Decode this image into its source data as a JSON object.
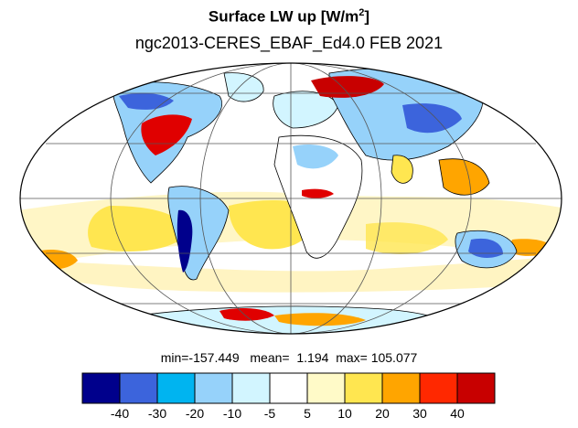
{
  "title": "Surface LW up [W/m",
  "title_sup": "2",
  "title_end": "]",
  "subtitle": "ngc2013-CERES_EBAF_Ed4.0  FEB 2021",
  "stats": {
    "min_label": "min=",
    "min": "-157.449",
    "mean_label": "mean=",
    "mean": "1.194",
    "max_label": "max=",
    "max": "105.077"
  },
  "colorbar": {
    "colors": [
      "#00008c",
      "#3c64dc",
      "#00b4f0",
      "#96d2fa",
      "#d2f5ff",
      "#ffffff",
      "#fffac8",
      "#ffe650",
      "#ffa500",
      "#ff2800",
      "#c80000"
    ],
    "tick_labels": [
      "-40",
      "-30",
      "-20",
      "-10",
      "-5",
      "5",
      "10",
      "20",
      "30",
      "40"
    ]
  },
  "map": {
    "projection": "mollweide",
    "ocean_fill": "#ffffff",
    "grid_color": "#555555",
    "coast_color": "#000000"
  }
}
